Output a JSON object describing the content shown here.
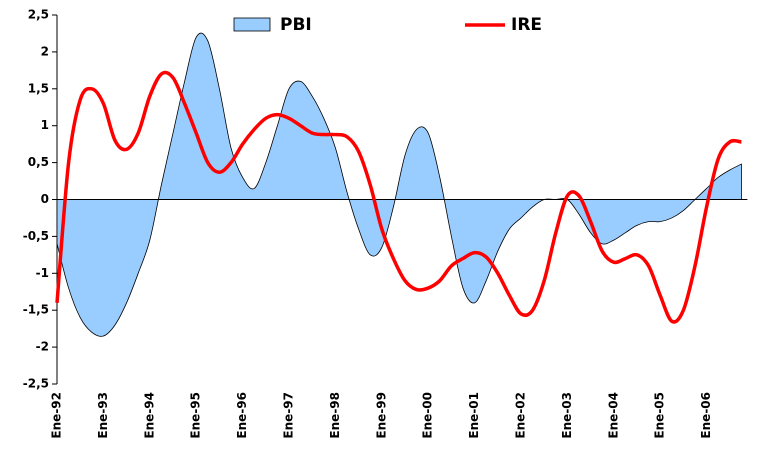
{
  "chart_data": {
    "type": "area-line",
    "categories": [
      "Ene-92",
      null,
      null,
      null,
      "Ene-93",
      null,
      null,
      null,
      "Ene-94",
      null,
      null,
      null,
      "Ene-95",
      null,
      null,
      null,
      "Ene-96",
      null,
      null,
      null,
      "Ene-97",
      null,
      null,
      null,
      "Ene-98",
      null,
      null,
      null,
      "Ene-99",
      null,
      null,
      null,
      "Ene-00",
      null,
      null,
      null,
      "Ene-01",
      null,
      null,
      null,
      "Ene-02",
      null,
      null,
      null,
      "Ene-03",
      null,
      null,
      null,
      "Ene-04",
      null,
      null,
      null,
      "Ene-05",
      null,
      null,
      null,
      "Ene-06",
      null,
      null,
      null
    ],
    "series": [
      {
        "name": "PBI",
        "kind": "area",
        "color": "#99ccff",
        "values": [
          -0.6,
          -1.2,
          -1.6,
          -1.8,
          -1.85,
          -1.7,
          -1.4,
          -1.0,
          -0.55,
          0.2,
          0.9,
          1.6,
          2.2,
          2.15,
          1.5,
          0.7,
          0.3,
          0.15,
          0.5,
          1.0,
          1.5,
          1.6,
          1.4,
          1.1,
          0.7,
          0.1,
          -0.4,
          -0.75,
          -0.65,
          -0.1,
          0.6,
          0.95,
          0.9,
          0.3,
          -0.5,
          -1.2,
          -1.4,
          -1.1,
          -0.7,
          -0.4,
          -0.25,
          -0.1,
          0.0,
          0.0,
          0.0,
          -0.2,
          -0.45,
          -0.6,
          -0.55,
          -0.45,
          -0.35,
          -0.3,
          -0.3,
          -0.25,
          -0.15,
          0.0,
          0.15,
          0.3,
          0.4,
          0.48
        ]
      },
      {
        "name": "IRE",
        "kind": "line",
        "color": "#ff0000",
        "values": [
          -1.4,
          0.5,
          1.35,
          1.5,
          1.3,
          0.8,
          0.68,
          0.9,
          1.4,
          1.7,
          1.65,
          1.3,
          0.9,
          0.5,
          0.37,
          0.5,
          0.75,
          0.95,
          1.1,
          1.15,
          1.1,
          1.0,
          0.9,
          0.88,
          0.88,
          0.85,
          0.65,
          0.2,
          -0.4,
          -0.8,
          -1.1,
          -1.22,
          -1.2,
          -1.1,
          -0.9,
          -0.8,
          -0.72,
          -0.78,
          -1.0,
          -1.3,
          -1.55,
          -1.5,
          -1.1,
          -0.45,
          0.05,
          0.05,
          -0.3,
          -0.7,
          -0.85,
          -0.8,
          -0.75,
          -0.9,
          -1.3,
          -1.65,
          -1.5,
          -0.9,
          -0.1,
          0.55,
          0.78,
          0.78
        ]
      }
    ],
    "ylim": [
      -2.5,
      2.5
    ],
    "yticks": [
      {
        "value": 2.5,
        "label": "2,5"
      },
      2,
      {
        "value": 1.5,
        "label": "1,5"
      },
      1,
      {
        "value": 0.5,
        "label": "0,5"
      },
      0,
      {
        "value": -0.5,
        "label": "-0,5"
      },
      -1,
      {
        "value": -1.5,
        "label": "-1,5"
      },
      -2,
      {
        "value": -2.5,
        "label": "-2,5"
      }
    ],
    "grid": false,
    "legend": "top"
  }
}
